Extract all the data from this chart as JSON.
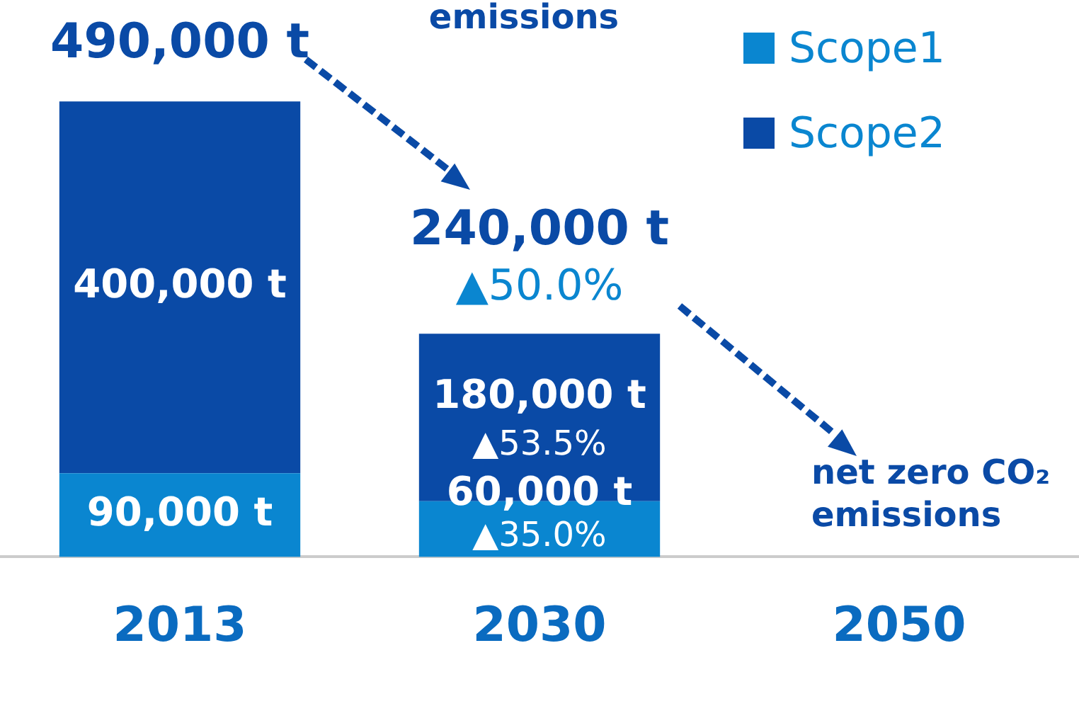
{
  "chart_data": {
    "type": "bar",
    "stacked": true,
    "categories": [
      "2013",
      "2030",
      "2050"
    ],
    "series": [
      {
        "name": "Scope1",
        "color": "#0a86d0",
        "values": [
          90000,
          60000,
          null
        ],
        "value_labels": [
          "90,000 t",
          "60,000 t\n▲35.0%",
          null
        ]
      },
      {
        "name": "Scope2",
        "color": "#0a4aa6",
        "values": [
          400000,
          180000,
          null
        ],
        "value_labels": [
          "400,000 t",
          "180,000 t\n▲53.5%",
          null
        ]
      }
    ],
    "tick_labels": "x",
    "grid": false,
    "legend": "top right",
    "totals": [
      "490,000 t",
      "240,000 t",
      null
    ],
    "annotations": [
      "emissions",
      {
        "text": "▲50.0%",
        "x": "2030",
        "y": 240000
      },
      "net zero CO₂ emissions"
    ]
  }
}
